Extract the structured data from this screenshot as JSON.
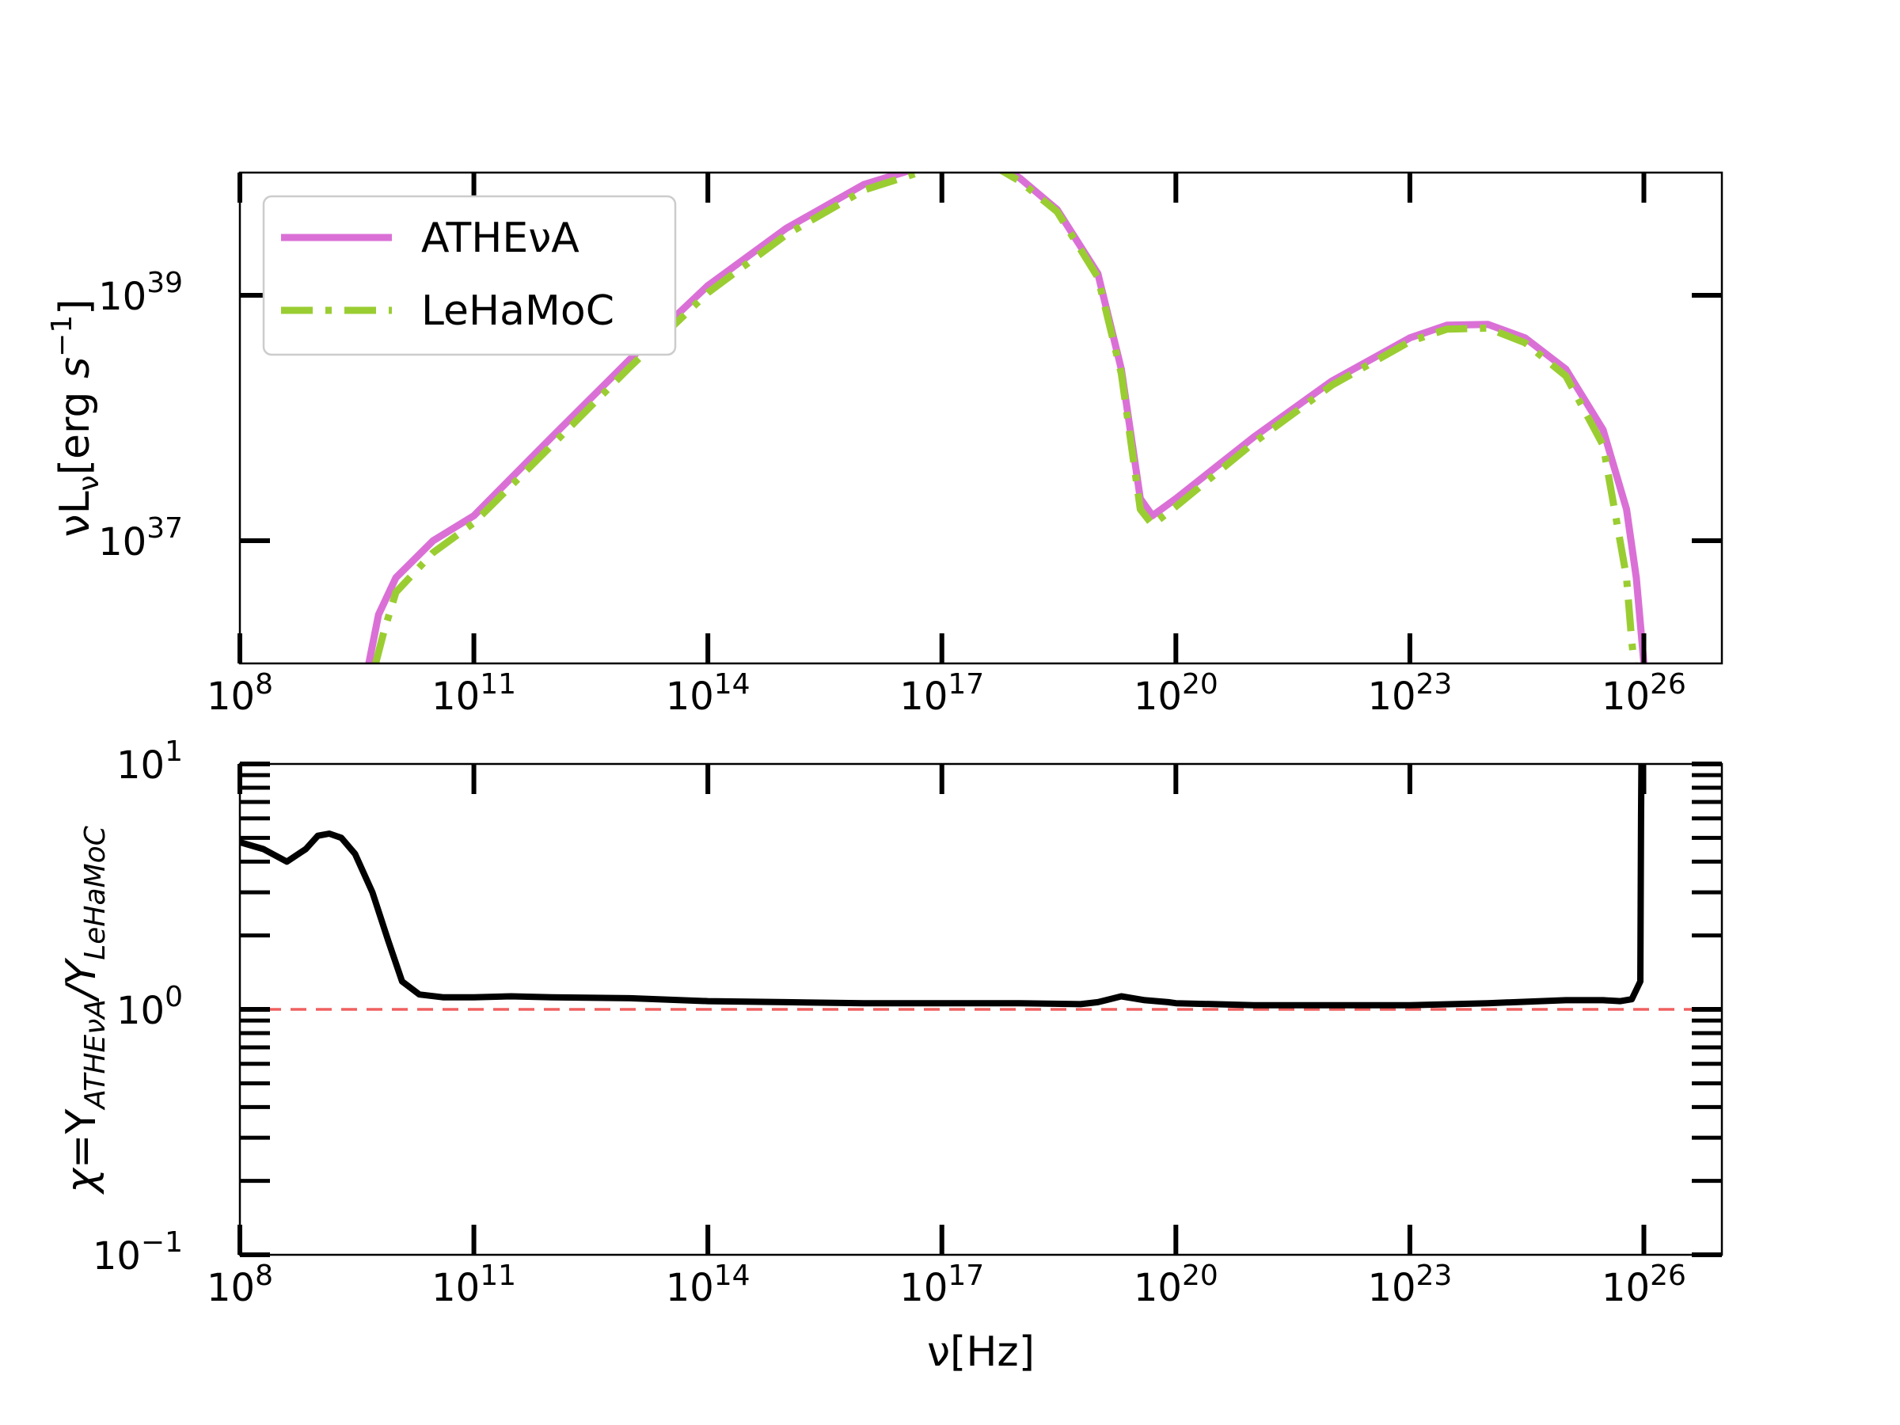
{
  "chart_data": [
    {
      "type": "line",
      "ylabel": "νL_ν[erg s^-1]",
      "xscale": "log",
      "yscale": "log",
      "xlim": [
        100000000.0,
        1e+27
      ],
      "ylim": [
        1e+36,
        1e+40
      ],
      "xticks": [
        {
          "base": "10",
          "exp": "8"
        },
        {
          "base": "10",
          "exp": "11"
        },
        {
          "base": "10",
          "exp": "14"
        },
        {
          "base": "10",
          "exp": "17"
        },
        {
          "base": "10",
          "exp": "20"
        },
        {
          "base": "10",
          "exp": "23"
        },
        {
          "base": "10",
          "exp": "26"
        }
      ],
      "yticks": [
        {
          "base": "10",
          "exp": "37"
        },
        {
          "base": "10",
          "exp": "39"
        }
      ],
      "legend_position": "top-left",
      "series": [
        {
          "name": "ATHEνA",
          "color": "#da70d6",
          "style": "solid",
          "x": [
            4500000000.0,
            6000000000.0,
            10000000000.0,
            30000000000.0,
            100000000000.0,
            1000000000000.0,
            10000000000000.0,
            100000000000000.0,
            1000000000000000.0,
            1e+16,
            1e+17,
            5e+17,
            1e+18,
            3e+18,
            1e+19,
            2e+19,
            3.5e+19,
            5e+19,
            1e+20,
            1e+21,
            1e+22,
            1e+23,
            3e+23,
            1e+24,
            3e+24,
            1e+25,
            3e+25,
            6e+25,
            8e+25,
            1e+26
          ],
          "y": [
            1e+36,
            2.5e+36,
            5e+36,
            1e+37,
            1.6e+37,
            7e+37,
            3e+38,
            1.2e+39,
            3.5e+39,
            8e+39,
            1.25e+40,
            1.2e+40,
            9e+39,
            5e+39,
            1.5e+39,
            2.5e+38,
            2.2e+37,
            1.6e+37,
            2.2e+37,
            7e+37,
            2e+38,
            4.5e+38,
            5.7e+38,
            5.8e+38,
            4.5e+38,
            2.5e+38,
            8e+37,
            1.8e+37,
            5e+36,
            1e+36
          ]
        },
        {
          "name": "LeHaMoC",
          "color": "#9acd32",
          "style": "dashdot",
          "x": [
            5500000000.0,
            7000000000.0,
            10000000000.0,
            30000000000.0,
            100000000000.0,
            1000000000000.0,
            10000000000000.0,
            100000000000000.0,
            1000000000000000.0,
            1e+16,
            1e+17,
            5e+17,
            1e+18,
            3e+18,
            1e+19,
            2e+19,
            3.5e+19,
            5e+19,
            1e+20,
            1e+21,
            1e+22,
            1e+23,
            3e+23,
            1e+24,
            3e+24,
            1e+25,
            3e+25,
            6e+25,
            7e+25,
            7.5e+25
          ],
          "y": [
            1e+36,
            1.8e+36,
            3.8e+36,
            8e+36,
            1.4e+37,
            6e+37,
            2.6e+38,
            1.05e+39,
            3.1e+39,
            7.2e+39,
            1.15e+40,
            1.1e+40,
            8.5e+39,
            4.8e+39,
            1.4e+39,
            2.3e+38,
            1.8e+37,
            1.35e+37,
            1.9e+37,
            6.3e+37,
            1.85e+38,
            4.2e+38,
            5.3e+38,
            5.4e+38,
            4.1e+38,
            2.2e+38,
            6e+37,
            5e+36,
            1.5e+36,
            1e+36
          ]
        }
      ]
    },
    {
      "type": "line",
      "xlabel": "ν[Hz]",
      "ylabel": "χ=Y_ATHEνA/Y_LeHaMoC",
      "xscale": "log",
      "yscale": "log",
      "xlim": [
        100000000.0,
        1e+27
      ],
      "ylim": [
        0.1,
        10
      ],
      "xticks": [
        {
          "base": "10",
          "exp": "8"
        },
        {
          "base": "10",
          "exp": "11"
        },
        {
          "base": "10",
          "exp": "14"
        },
        {
          "base": "10",
          "exp": "17"
        },
        {
          "base": "10",
          "exp": "20"
        },
        {
          "base": "10",
          "exp": "23"
        },
        {
          "base": "10",
          "exp": "26"
        }
      ],
      "yticks": [
        {
          "base": "10",
          "exp": "−1"
        },
        {
          "base": "10",
          "exp": "0"
        },
        {
          "base": "10",
          "exp": "1"
        }
      ],
      "reference_line": {
        "y": 1.0,
        "color": "#f06060",
        "style": "dashed"
      },
      "series": [
        {
          "color": "#000000",
          "style": "solid",
          "x": [
            100000000.0,
            200000000.0,
            400000000.0,
            700000000.0,
            1000000000.0,
            1400000000.0,
            2000000000.0,
            3000000000.0,
            5000000000.0,
            8000000000.0,
            12000000000.0,
            20000000000.0,
            40000000000.0,
            70000000000.0,
            100000000000.0,
            300000000000.0,
            1000000000000.0,
            10000000000000.0,
            100000000000000.0,
            1000000000000000.0,
            1e+16,
            1e+17,
            1e+18,
            6e+18,
            1e+19,
            2e+19,
            4e+19,
            8e+19,
            1e+20,
            1e+21,
            1e+22,
            1e+23,
            1e+24,
            1e+25,
            3e+25,
            5e+25,
            7e+25,
            9e+25,
            9.2e+25,
            9.3e+25
          ],
          "y": [
            4.8,
            4.5,
            4.0,
            4.5,
            5.1,
            5.2,
            5.0,
            4.3,
            3.0,
            1.9,
            1.3,
            1.15,
            1.12,
            1.12,
            1.12,
            1.13,
            1.12,
            1.11,
            1.08,
            1.07,
            1.06,
            1.06,
            1.06,
            1.05,
            1.07,
            1.13,
            1.09,
            1.07,
            1.06,
            1.04,
            1.04,
            1.04,
            1.06,
            1.09,
            1.09,
            1.08,
            1.1,
            1.3,
            6.0,
            10
          ]
        }
      ]
    }
  ]
}
